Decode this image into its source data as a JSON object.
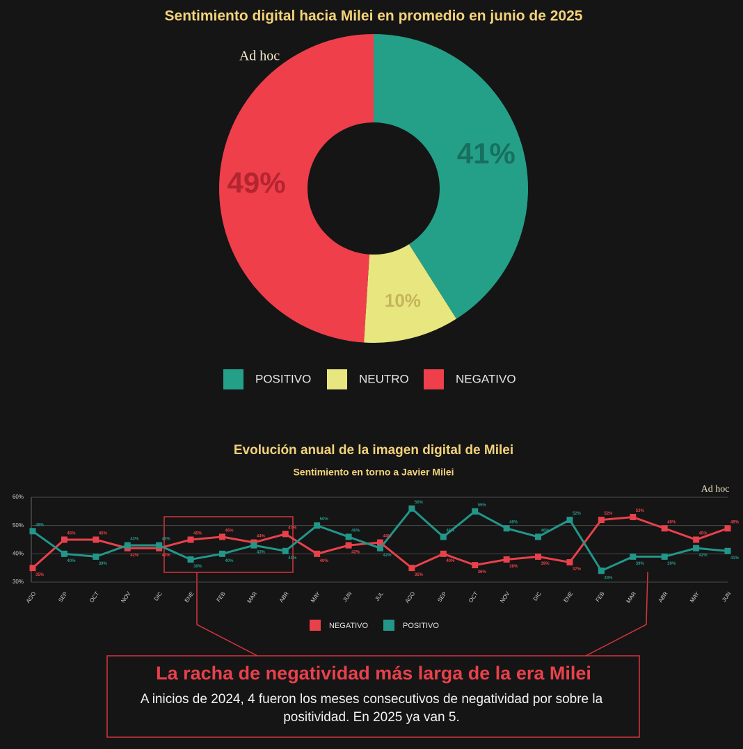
{
  "chart_data": [
    {
      "type": "pie",
      "title": "Sentimiento digital hacia Milei en promedio en junio de 2025",
      "brand": "Ad hoc",
      "categories": [
        "POSITIVO",
        "NEUTRO",
        "NEGATIVO"
      ],
      "values": [
        41,
        10,
        49
      ],
      "value_labels": [
        "41%",
        "10%",
        "49%"
      ],
      "colors": [
        "#25a088",
        "#e8e67e",
        "#ee3f4b"
      ],
      "label_colors": [
        "#17705f",
        "#c7b35e",
        "#b3252f"
      ],
      "donut": true
    },
    {
      "type": "line",
      "title": "Evolución anual de la imagen digital de Milei",
      "subtitle": "Sentimiento en torno a Javier Milei",
      "brand": "Ad hoc",
      "categories": [
        "AGO",
        "SEP",
        "OCT",
        "NOV",
        "DIC",
        "ENE",
        "FEB",
        "MAR",
        "ABR",
        "MAY",
        "JUN",
        "JUL",
        "AGO",
        "SEP",
        "OCT",
        "NOV",
        "DIC",
        "ENE",
        "FEB",
        "MAR",
        "ABR",
        "MAY",
        "JUN"
      ],
      "series": [
        {
          "name": "NEGATIVO",
          "color": "#e8414b",
          "values": [
            35,
            45,
            45,
            42,
            42,
            45,
            46,
            44,
            47,
            40,
            43,
            44,
            35,
            40,
            36,
            38,
            39,
            37,
            52,
            53,
            49,
            45,
            49
          ],
          "value_labels": [
            "35%",
            "45%",
            "45%",
            "42%",
            "42%",
            "45%",
            "46%",
            "44%",
            "47%",
            "40%",
            "43%",
            "44%",
            "35%",
            "40%",
            "36%",
            "38%",
            "39%",
            "37%",
            "52%",
            "53%",
            "49%",
            "45%",
            "49%"
          ]
        },
        {
          "name": "POSITIVO",
          "color": "#23968a",
          "values": [
            48,
            40,
            39,
            43,
            43,
            38,
            40,
            43,
            41,
            50,
            46,
            42,
            56,
            46,
            55,
            49,
            46,
            52,
            34,
            39,
            39,
            42,
            41
          ],
          "value_labels": [
            "48%",
            "40%",
            "39%",
            "43%",
            "43%",
            "38%",
            "40%",
            "43%",
            "41%",
            "50%",
            "46%",
            "42%",
            "56%",
            "46%",
            "55%",
            "49%",
            "46%",
            "52%",
            "34%",
            "39%",
            "39%",
            "42%",
            "41%"
          ]
        }
      ],
      "ylim": [
        30,
        60
      ],
      "yticks": [
        {
          "value": 30,
          "label": "30%"
        },
        {
          "value": 40,
          "label": "40%"
        },
        {
          "value": 50,
          "label": "50%"
        },
        {
          "value": 60,
          "label": "60%"
        }
      ],
      "grid": true,
      "annotation": {
        "title": "La racha de negatividad más larga de la era Milei",
        "text": "A inicios de 2024, 4 fueron los meses consecutivos de negatividad por sobre la positividad. En 2025 ya van 5."
      }
    }
  ]
}
